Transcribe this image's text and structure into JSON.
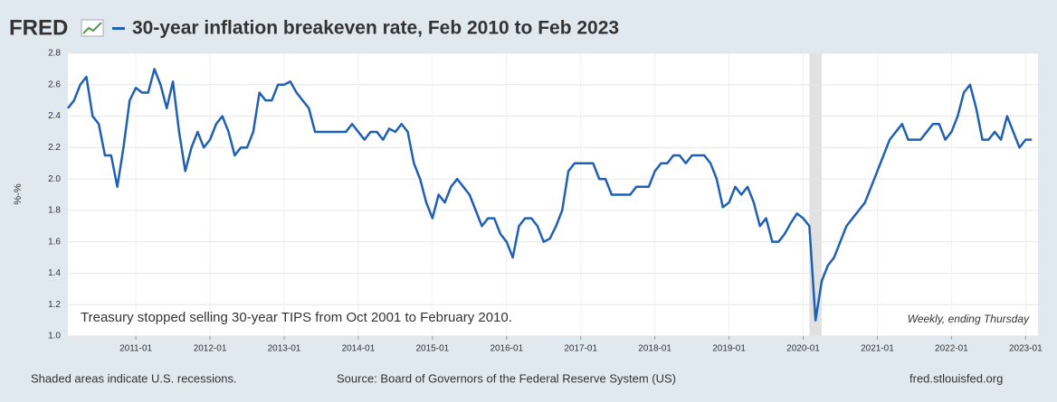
{
  "brand": "FRED",
  "footer": {
    "recession_note": "Shaded areas indicate U.S. recessions.",
    "source": "Source: Board of Governors of the Federal Reserve System (US)",
    "site": "fred.stlouisfed.org"
  },
  "chart_data": {
    "type": "line",
    "title": "30-year inflation breakeven rate, Feb 2010 to Feb 2023",
    "y_label": "%-%",
    "annotation": "Treasury stopped selling 30-year TIPS from Oct 2001 to February 2010.",
    "frequency_note": "Weekly, ending Thursday",
    "color": "#1f5fb5",
    "grid": true,
    "xlim": [
      "2010-02",
      "2023-03"
    ],
    "xticks": [
      "2011-01",
      "2012-01",
      "2013-01",
      "2014-01",
      "2015-01",
      "2016-01",
      "2017-01",
      "2018-01",
      "2019-01",
      "2020-01",
      "2021-01",
      "2022-01",
      "2023-01"
    ],
    "ylim": [
      1.0,
      2.8
    ],
    "yticks": [
      {
        "value": 1.0,
        "label": "1.0"
      },
      1.2,
      1.4,
      1.6,
      1.8,
      {
        "value": 2.0,
        "label": "2.0"
      },
      2.2,
      2.4,
      2.6,
      2.8
    ],
    "recessions": [
      {
        "start": "2020-02",
        "end": "2020-04"
      }
    ],
    "x": [
      "2010-02",
      "2010-03",
      "2010-04",
      "2010-05",
      "2010-06",
      "2010-07",
      "2010-08",
      "2010-09",
      "2010-10",
      "2010-11",
      "2010-12",
      "2011-01",
      "2011-02",
      "2011-03",
      "2011-04",
      "2011-05",
      "2011-06",
      "2011-07",
      "2011-08",
      "2011-09",
      "2011-10",
      "2011-11",
      "2011-12",
      "2012-01",
      "2012-02",
      "2012-03",
      "2012-04",
      "2012-05",
      "2012-06",
      "2012-07",
      "2012-08",
      "2012-09",
      "2012-10",
      "2012-11",
      "2012-12",
      "2013-01",
      "2013-02",
      "2013-03",
      "2013-04",
      "2013-05",
      "2013-06",
      "2013-07",
      "2013-08",
      "2013-09",
      "2013-10",
      "2013-11",
      "2013-12",
      "2014-01",
      "2014-02",
      "2014-03",
      "2014-04",
      "2014-05",
      "2014-06",
      "2014-07",
      "2014-08",
      "2014-09",
      "2014-10",
      "2014-11",
      "2014-12",
      "2015-01",
      "2015-02",
      "2015-03",
      "2015-04",
      "2015-05",
      "2015-06",
      "2015-07",
      "2015-08",
      "2015-09",
      "2015-10",
      "2015-11",
      "2015-12",
      "2016-01",
      "2016-02",
      "2016-03",
      "2016-04",
      "2016-05",
      "2016-06",
      "2016-07",
      "2016-08",
      "2016-09",
      "2016-10",
      "2016-11",
      "2016-12",
      "2017-01",
      "2017-02",
      "2017-03",
      "2017-04",
      "2017-05",
      "2017-06",
      "2017-07",
      "2017-08",
      "2017-09",
      "2017-10",
      "2017-11",
      "2017-12",
      "2018-01",
      "2018-02",
      "2018-03",
      "2018-04",
      "2018-05",
      "2018-06",
      "2018-07",
      "2018-08",
      "2018-09",
      "2018-10",
      "2018-11",
      "2018-12",
      "2019-01",
      "2019-02",
      "2019-03",
      "2019-04",
      "2019-05",
      "2019-06",
      "2019-07",
      "2019-08",
      "2019-09",
      "2019-10",
      "2019-11",
      "2019-12",
      "2020-01",
      "2020-02",
      "2020-03",
      "2020-04",
      "2020-05",
      "2020-06",
      "2020-07",
      "2020-08",
      "2020-09",
      "2020-10",
      "2020-11",
      "2020-12",
      "2021-01",
      "2021-02",
      "2021-03",
      "2021-04",
      "2021-05",
      "2021-06",
      "2021-07",
      "2021-08",
      "2021-09",
      "2021-10",
      "2021-11",
      "2021-12",
      "2022-01",
      "2022-02",
      "2022-03",
      "2022-04",
      "2022-05",
      "2022-06",
      "2022-07",
      "2022-08",
      "2022-09",
      "2022-10",
      "2022-11",
      "2022-12",
      "2023-01",
      "2023-02"
    ],
    "values": [
      2.45,
      2.5,
      2.6,
      2.65,
      2.4,
      2.35,
      2.15,
      2.15,
      1.95,
      2.2,
      2.5,
      2.58,
      2.55,
      2.55,
      2.7,
      2.6,
      2.45,
      2.62,
      2.3,
      2.05,
      2.2,
      2.3,
      2.2,
      2.25,
      2.35,
      2.4,
      2.3,
      2.15,
      2.2,
      2.2,
      2.3,
      2.55,
      2.5,
      2.5,
      2.6,
      2.6,
      2.62,
      2.55,
      2.5,
      2.45,
      2.3,
      2.3,
      2.3,
      2.3,
      2.3,
      2.3,
      2.35,
      2.3,
      2.25,
      2.3,
      2.3,
      2.25,
      2.32,
      2.3,
      2.35,
      2.3,
      2.1,
      2.0,
      1.85,
      1.75,
      1.9,
      1.85,
      1.95,
      2.0,
      1.95,
      1.9,
      1.8,
      1.7,
      1.75,
      1.75,
      1.65,
      1.6,
      1.5,
      1.7,
      1.75,
      1.75,
      1.7,
      1.6,
      1.62,
      1.7,
      1.8,
      2.05,
      2.1,
      2.1,
      2.1,
      2.1,
      2.0,
      2.0,
      1.9,
      1.9,
      1.9,
      1.9,
      1.95,
      1.95,
      1.95,
      2.05,
      2.1,
      2.1,
      2.15,
      2.15,
      2.1,
      2.15,
      2.15,
      2.15,
      2.1,
      2.0,
      1.82,
      1.85,
      1.95,
      1.9,
      1.95,
      1.85,
      1.7,
      1.75,
      1.6,
      1.6,
      1.65,
      1.72,
      1.78,
      1.75,
      1.7,
      1.1,
      1.35,
      1.45,
      1.5,
      1.6,
      1.7,
      1.75,
      1.8,
      1.85,
      1.95,
      2.05,
      2.15,
      2.25,
      2.3,
      2.35,
      2.25,
      2.25,
      2.25,
      2.3,
      2.35,
      2.35,
      2.25,
      2.3,
      2.4,
      2.55,
      2.6,
      2.45,
      2.25,
      2.25,
      2.3,
      2.25,
      2.4,
      2.3,
      2.2,
      2.25,
      2.25
    ]
  }
}
